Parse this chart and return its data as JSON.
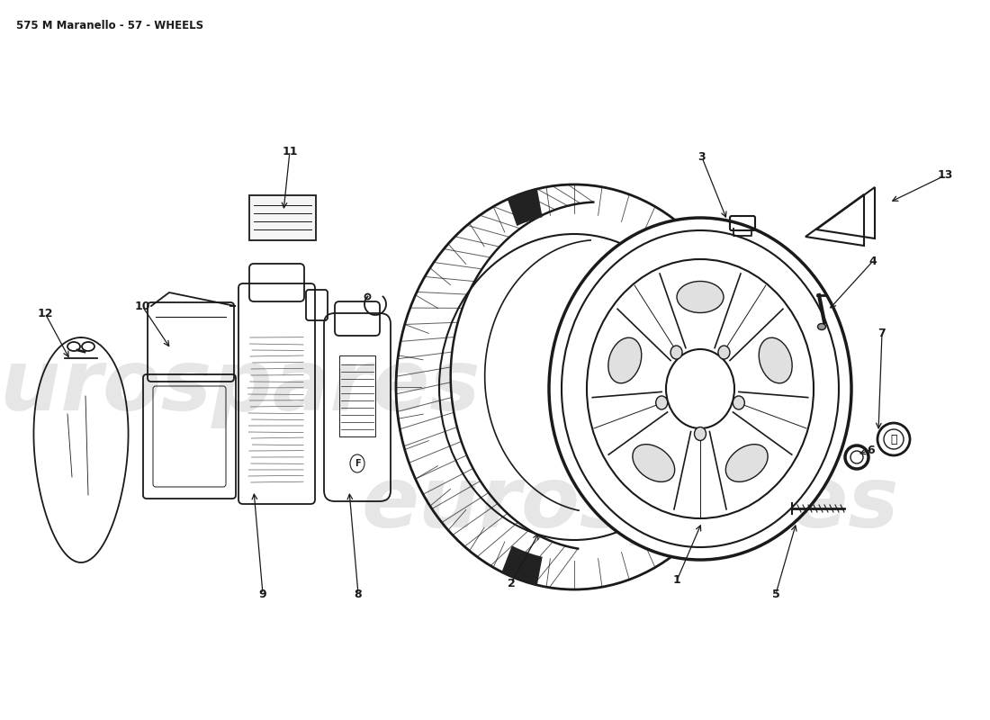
{
  "title": "575 M Maranello - 57 - WHEELS",
  "title_fontsize": 8.5,
  "bg_color": "#ffffff",
  "line_color": "#1a1a1a",
  "watermark_text": "eurospares",
  "label_positions": {
    "1": [
      752,
      645,
      780,
      580
    ],
    "2": [
      568,
      648,
      600,
      590
    ],
    "3": [
      780,
      175,
      808,
      245
    ],
    "4": [
      970,
      290,
      920,
      345
    ],
    "5": [
      862,
      660,
      885,
      580
    ],
    "6": [
      968,
      500,
      952,
      505
    ],
    "7": [
      980,
      370,
      976,
      480
    ],
    "8": [
      398,
      660,
      388,
      545
    ],
    "9": [
      292,
      660,
      282,
      545
    ],
    "10": [
      158,
      340,
      190,
      388
    ],
    "11": [
      322,
      168,
      315,
      235
    ],
    "12": [
      50,
      348,
      78,
      400
    ],
    "13": [
      1050,
      195,
      988,
      225
    ]
  }
}
